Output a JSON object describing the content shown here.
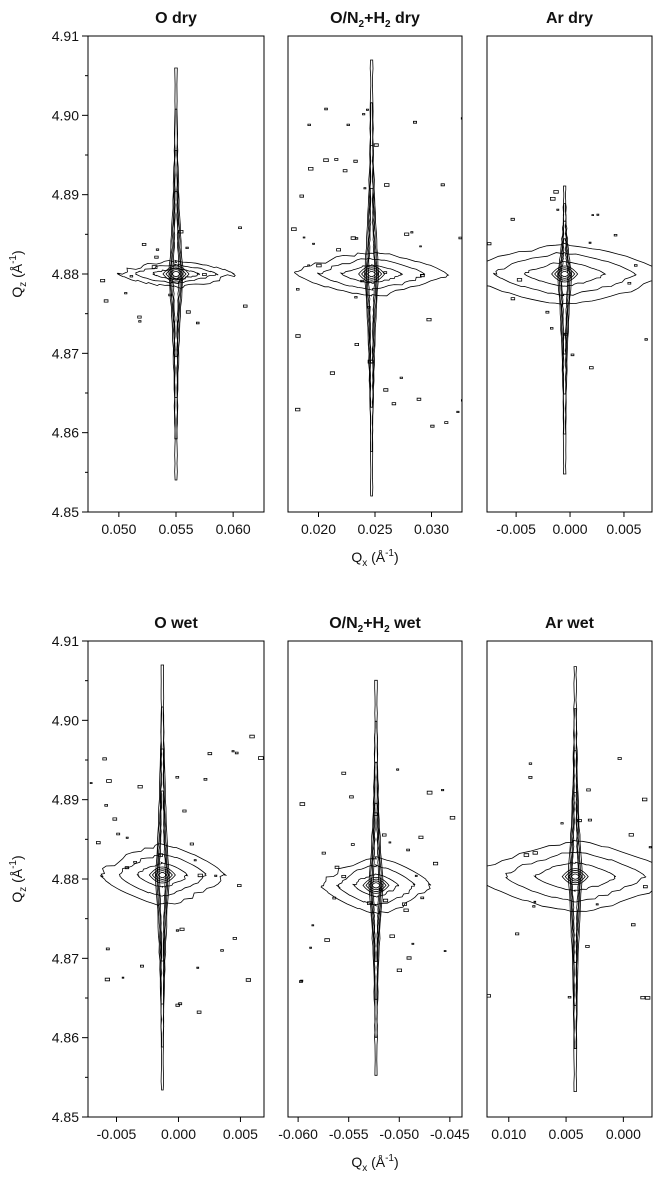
{
  "chart_data": [
    {
      "type": "contour",
      "title": [
        {
          "text": "O dry"
        }
      ],
      "xlim": [
        0.0473,
        0.0627
      ],
      "xticks": [
        {
          "value": 0.05,
          "label": "0.050"
        },
        0.055,
        {
          "value": 0.06,
          "label": "0.060"
        }
      ],
      "ylim": [
        4.85,
        4.91
      ],
      "yticks": [
        4.85,
        4.86,
        4.87,
        4.88,
        4.89,
        {
          "value": 4.9,
          "label": "4.90"
        },
        4.91
      ],
      "y_label": [
        {
          "text": "Q"
        },
        {
          "text": "z",
          "shift": "sub"
        },
        {
          "text": " (Å"
        },
        {
          "text": "-1",
          "shift": "super"
        },
        {
          "text": ")"
        }
      ],
      "peak": [
        0.055,
        4.88
      ]
    },
    {
      "type": "contour",
      "title": [
        {
          "text": "O/N"
        },
        {
          "text": "2",
          "shift": "sub"
        },
        {
          "text": "+H"
        },
        {
          "text": "2",
          "shift": "sub"
        },
        {
          "text": " dry"
        }
      ],
      "xlim": [
        0.0173,
        0.0327
      ],
      "xticks": [
        {
          "value": 0.02,
          "label": "0.020"
        },
        0.025,
        {
          "value": 0.03,
          "label": "0.030"
        }
      ],
      "ylim": [
        4.85,
        4.91
      ],
      "x_label": [
        {
          "text": "Q"
        },
        {
          "text": "x",
          "shift": "sub"
        },
        {
          "text": " (Å"
        },
        {
          "text": "-1",
          "shift": "super"
        },
        {
          "text": ")"
        }
      ],
      "peak": [
        0.0247,
        4.88
      ]
    },
    {
      "type": "contour",
      "title": [
        {
          "text": "Ar dry"
        }
      ],
      "xlim": [
        -0.0077,
        0.0076
      ],
      "xticks": [
        -0.005,
        {
          "value": 0,
          "label": "0.000"
        },
        0.005
      ],
      "ylim": [
        4.85,
        4.91
      ],
      "peak": [
        -0.0005,
        4.88
      ]
    },
    {
      "type": "contour",
      "title": [
        {
          "text": "O wet"
        }
      ],
      "xlim": [
        -0.0073,
        0.0069
      ],
      "xticks": [
        -0.005,
        {
          "value": 0,
          "label": "0.000"
        },
        0.005
      ],
      "ylim": [
        4.85,
        4.91
      ],
      "yticks": [
        4.85,
        4.86,
        4.87,
        4.88,
        4.89,
        {
          "value": 4.9,
          "label": "4.90"
        },
        4.91
      ],
      "y_label": [
        {
          "text": "Q"
        },
        {
          "text": "z",
          "shift": "sub"
        },
        {
          "text": " (Å"
        },
        {
          "text": "-1",
          "shift": "super"
        },
        {
          "text": ")"
        }
      ],
      "peak": [
        -0.0013,
        4.8805
      ]
    },
    {
      "type": "contour",
      "title": [
        {
          "text": "O/N"
        },
        {
          "text": "2",
          "shift": "sub"
        },
        {
          "text": "+H"
        },
        {
          "text": "2",
          "shift": "sub"
        },
        {
          "text": " wet"
        }
      ],
      "xlim": [
        -0.061,
        -0.0438
      ],
      "xticks": [
        {
          "value": -0.06,
          "label": "-0.060"
        },
        -0.055,
        {
          "value": -0.05,
          "label": "-0.050"
        },
        -0.045
      ],
      "ylim": [
        4.85,
        4.91
      ],
      "x_label": [
        {
          "text": "Q"
        },
        {
          "text": "x",
          "shift": "sub"
        },
        {
          "text": " (Å"
        },
        {
          "text": "-1",
          "shift": "super"
        },
        {
          "text": ")"
        }
      ],
      "peak": [
        -0.0523,
        4.8792
      ]
    },
    {
      "type": "contour",
      "title": [
        {
          "text": "Ar wet"
        }
      ],
      "xlim": [
        0.0119,
        -0.0025
      ],
      "xticks": [
        {
          "value": 0.01,
          "label": "0.010"
        },
        0.005,
        {
          "value": 0,
          "label": "0.000"
        }
      ],
      "ylim": [
        4.85,
        4.91
      ],
      "peak": [
        0.0042,
        4.8803
      ]
    }
  ]
}
